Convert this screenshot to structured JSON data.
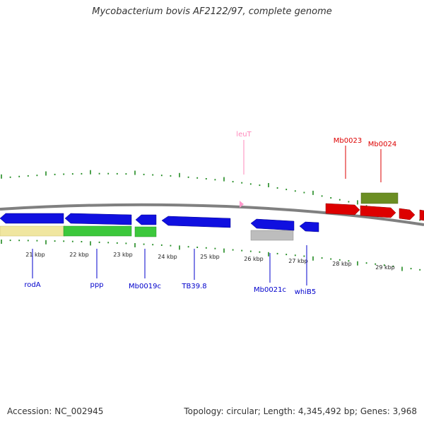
{
  "title": "Mycobacterium bovis AF2122/97, complete genome",
  "footer": {
    "accession": "Accession: NC_002945",
    "summary": "Topology: circular; Length: 4,345,492 bp; Genes: 3,968"
  },
  "axis_labels": [
    "21 kbp",
    "22 kbp",
    "23 kbp",
    "24 kbp",
    "25 kbp",
    "26 kbp",
    "27 kbp",
    "28 kbp",
    "29 kbp"
  ],
  "genes": [
    {
      "label": "rodA",
      "color": "#0000cc"
    },
    {
      "label": "ppp",
      "color": "#0000cc"
    },
    {
      "label": "Mb0019c",
      "color": "#0000cc"
    },
    {
      "label": "TB39.8",
      "color": "#0000cc"
    },
    {
      "label": "Mb0021c",
      "color": "#0000cc"
    },
    {
      "label": "whiB5",
      "color": "#0000cc"
    },
    {
      "label": "leuT",
      "color": "#ff88bb"
    },
    {
      "label": "Mb0023",
      "color": "#dd0000"
    },
    {
      "label": "Mb0024",
      "color": "#dd0000"
    }
  ],
  "colors": {
    "backbone": "#808080",
    "ticks": "#228b22",
    "forward_cds": "#1010e0",
    "cds_alt": "#dd0000",
    "rrna_yellow": "#f0e6a0",
    "green_feature": "#3cc83c",
    "olive_feature": "#6b8e23",
    "grey_feature": "#bdbdbd",
    "trna": "#ff99cc"
  }
}
